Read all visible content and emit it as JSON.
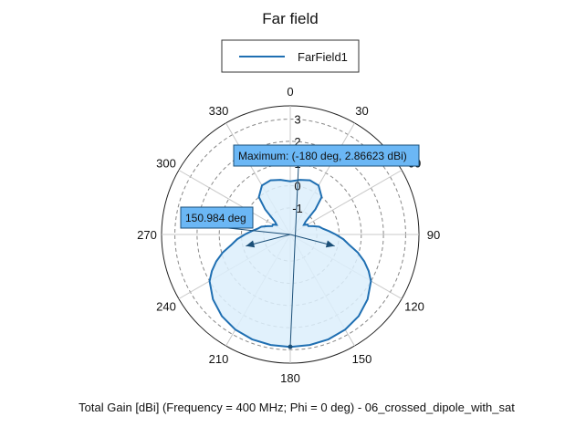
{
  "chart_data": {
    "type": "polar-line",
    "title": "Far field",
    "footer": "Total Gain [dBi] (Frequency = 400 MHz; Phi = 0 deg) - 06_crossed_dipole_with_sat",
    "legend": [
      {
        "name": "FarField1",
        "color": "#1f6fb2"
      }
    ],
    "angle_unit": "deg",
    "angle_ticks": [
      0,
      30,
      60,
      90,
      120,
      150,
      180,
      210,
      240,
      270,
      300,
      330
    ],
    "angle_labels": [
      "0",
      "30",
      "60",
      "90",
      "120",
      "150",
      "180",
      "210",
      "240",
      "270",
      "300",
      "330"
    ],
    "radial_ticks": [
      -1,
      0,
      1,
      2,
      3
    ],
    "radial_labels": [
      "-1",
      "0",
      "1",
      "2",
      "3"
    ],
    "radial_range": [
      -2.2,
      3.6
    ],
    "grid": true,
    "series": [
      {
        "name": "FarField1",
        "color": "#1f6fb2",
        "fill": "#dceefb",
        "theta": [
          0,
          10,
          20,
          30,
          40,
          45,
          50,
          55,
          60,
          65,
          70,
          75,
          80,
          85,
          90,
          95,
          100,
          105,
          110,
          115,
          120,
          130,
          140,
          150,
          160,
          170,
          180,
          190,
          200,
          210,
          220,
          230,
          240,
          245,
          250,
          255,
          260,
          265,
          270,
          275,
          280,
          285,
          290,
          295,
          300,
          305,
          310,
          315,
          320,
          330,
          340,
          350
        ],
        "gain": [
          0.2,
          0.3,
          0.4,
          0.35,
          0.0,
          -0.6,
          -1.3,
          -1.45,
          -1.3,
          -1.3,
          -1.1,
          -0.85,
          -0.7,
          -0.45,
          -0.15,
          0.2,
          0.5,
          0.95,
          1.35,
          1.7,
          2.0,
          2.35,
          2.6,
          2.75,
          2.83,
          2.86,
          2.87,
          2.86,
          2.83,
          2.75,
          2.6,
          2.35,
          2.0,
          1.7,
          1.35,
          0.95,
          0.5,
          0.2,
          -0.15,
          -0.45,
          -0.7,
          -0.85,
          -1.1,
          -1.3,
          -1.3,
          -1.45,
          -1.3,
          -0.6,
          0.0,
          0.35,
          0.4,
          0.3
        ]
      }
    ],
    "annotations": [
      {
        "label": "Maximum: (-180 deg, 2.86623 dBi)",
        "theta": 180,
        "value": 2.86623
      },
      {
        "label": "150.984 deg",
        "beamwidth_center": 180,
        "beamwidth_half": 75.492
      }
    ]
  }
}
